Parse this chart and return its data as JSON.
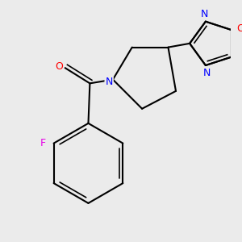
{
  "bg_color": "#ebebeb",
  "bond_color": "#000000",
  "atom_colors": {
    "N": "#0000ff",
    "O_carbonyl": "#ff0000",
    "O_ring": "#ff0000",
    "F": "#e800e8",
    "N_ring": "#0000ff"
  },
  "lw": 1.5,
  "lw_double": 1.2,
  "fontsize": 8.5
}
